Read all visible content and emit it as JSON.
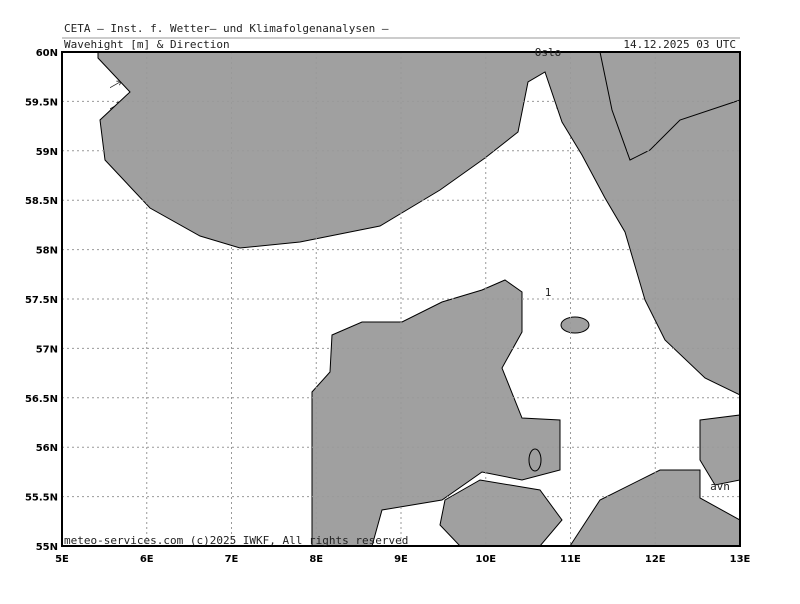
{
  "header": {
    "line1": "CETA – Inst. f. Wetter– und Klimafolgenanalysen –",
    "line2": "Wavehight [m] & Direction",
    "timestamp": "14.12.2025 03 UTC"
  },
  "map": {
    "lat_labels": [
      "60N",
      "59.5N",
      "59N",
      "58.5N",
      "58N",
      "57.5N",
      "57N",
      "56.5N",
      "56N",
      "55.5N",
      "55N"
    ],
    "lon_labels": [
      "5E",
      "6E",
      "7E",
      "8E",
      "9E",
      "10E",
      "11E",
      "12E",
      "13E"
    ],
    "place_labels": [
      "Oslo",
      "1",
      "avn"
    ]
  },
  "footer": "meteo-services.com (c)2025 IWKF, All rights reserved"
}
